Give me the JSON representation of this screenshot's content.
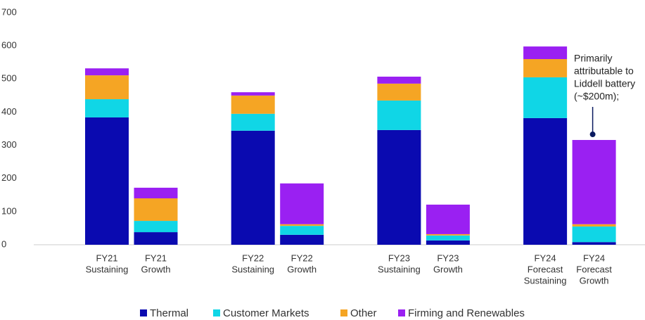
{
  "chart_data": {
    "type": "bar",
    "stacked": true,
    "categories": [
      [
        "FY21",
        "Sustaining"
      ],
      [
        "FY21",
        "Growth"
      ],
      [
        "FY22",
        "Sustaining"
      ],
      [
        "FY22",
        "Growth"
      ],
      [
        "FY23",
        "Sustaining"
      ],
      [
        "FY23",
        "Growth"
      ],
      [
        "FY24",
        "Forecast",
        "Sustaining"
      ],
      [
        "FY24",
        "Forecast",
        "Growth"
      ]
    ],
    "series": [
      {
        "name": "Thermal",
        "color": "#0a0ab0",
        "values": [
          384,
          38,
          344,
          30,
          346,
          13,
          382,
          8
        ]
      },
      {
        "name": "Customer Markets",
        "color": "#10d6e6",
        "values": [
          55,
          34,
          51,
          27,
          89,
          15,
          123,
          47
        ]
      },
      {
        "name": "Other",
        "color": "#f5a524",
        "values": [
          72,
          68,
          55,
          5,
          51,
          4,
          55,
          7
        ]
      },
      {
        "name": "Firming and Renewables",
        "color": "#9a20f2",
        "values": [
          21,
          32,
          10,
          123,
          21,
          89,
          38,
          254
        ]
      }
    ],
    "ylim": [
      0,
      700
    ],
    "yticks": [
      0,
      100,
      200,
      300,
      400,
      500,
      600,
      700
    ],
    "grid": false,
    "legend": "bottom",
    "annotation": {
      "lines": [
        "Primarily",
        "attributable to",
        "Liddell battery",
        "(~$200m);"
      ],
      "category": 7
    }
  }
}
